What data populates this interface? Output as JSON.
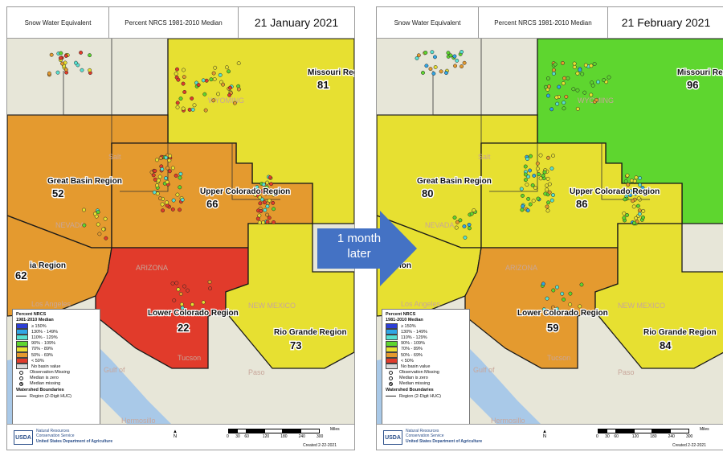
{
  "header": {
    "title_left": "Snow Water Equivalent",
    "title_mid": "Percent NRCS 1981-2010 Median"
  },
  "panels": [
    {
      "date": "21 January 2021",
      "regions": [
        {
          "name": "Missouri Regio",
          "value": "81",
          "color": "#e7e031"
        },
        {
          "name": "Great Basin Region",
          "value": "52",
          "color": "#e49a2f"
        },
        {
          "name": "Upper Colorado Region",
          "value": "66",
          "color": "#e49a2f"
        },
        {
          "name": "ia Region",
          "value": "62",
          "color": "#e49a2f"
        },
        {
          "name": "Lower Colorado Region",
          "value": "22",
          "color": "#e13b2b"
        },
        {
          "name": "Rio Grande Region",
          "value": "73",
          "color": "#e7e031"
        }
      ],
      "places": [
        "WYOMING",
        "Salt",
        "NEVADA",
        "Los Angeles",
        "ARIZONA",
        "NEW MEXICO",
        "Tucson",
        "Paso",
        "Hermosillo",
        "Gulf of"
      ]
    },
    {
      "date": "21 February 2021",
      "regions": [
        {
          "name": "Missouri Regi",
          "value": "96",
          "color": "#5ed62f"
        },
        {
          "name": "Great Basin Region",
          "value": "80",
          "color": "#e7e031"
        },
        {
          "name": "Upper Colorado Region",
          "value": "86",
          "color": "#e7e031"
        },
        {
          "name": "ion",
          "value": "",
          "color": "#e7e031"
        },
        {
          "name": "Lower Colorado Region",
          "value": "59",
          "color": "#e49a2f"
        },
        {
          "name": "Rio Grande Region",
          "value": "84",
          "color": "#e7e031"
        }
      ],
      "places": [
        "WYOMING",
        "Salt",
        "NEVADA",
        "Los Angeles",
        "ARIZONA",
        "NEW MEXICO",
        "Tucson",
        "Paso",
        "Hermosillo",
        "Gulf of"
      ]
    }
  ],
  "legend": {
    "title_1": "Percent NRCS",
    "title_2": "1981-2010 Median",
    "entries": [
      {
        "label": "≥ 150%",
        "color": "#2d3fd6"
      },
      {
        "label": "130% - 149%",
        "color": "#30a6e6"
      },
      {
        "label": "110% - 129%",
        "color": "#58e0d0"
      },
      {
        "label": "90% - 109%",
        "color": "#5ed62f"
      },
      {
        "label": "70% - 89%",
        "color": "#e7e031"
      },
      {
        "label": "50% - 69%",
        "color": "#e49a2f"
      },
      {
        "label": "< 50%",
        "color": "#e13b2b"
      },
      {
        "label": "No basin value",
        "color": "#d9d9d9"
      }
    ],
    "circles": [
      "Observation Missing",
      "Median is zero",
      "Median missing"
    ],
    "boundary_title": "Watershed Boundaries",
    "boundary_line": "Region (2-Digit HUC)"
  },
  "footer": {
    "usda": "USDA",
    "org_line1": "Natural Resources",
    "org_line2": "Conservation Service",
    "org_line3": "United States Department of Agriculture",
    "north": "N",
    "scale_ticks": [
      "0",
      "30",
      "60",
      "120",
      "180",
      "240",
      "300"
    ],
    "scale_unit": "Miles",
    "created": "Created 2-22-2021"
  },
  "arrow": {
    "line1": "1 month",
    "line2": "later",
    "color": "#4472c4"
  },
  "colors": {
    "green": "#5ed62f",
    "yellow": "#e7e031",
    "orange": "#e49a2f",
    "red": "#e13b2b",
    "water": "#a9c9e8",
    "land": "#e7e6d8"
  }
}
